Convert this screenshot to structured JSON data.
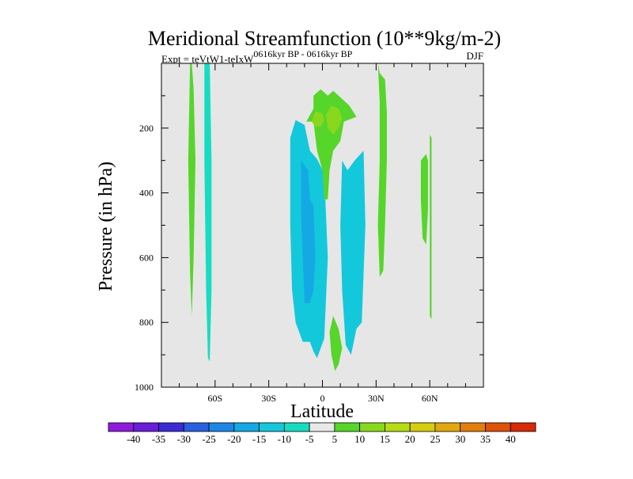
{
  "chart_data": {
    "type": "contour",
    "title": "Meridional Streamfunction (10**9kg/m-2)",
    "subtitle_left_base": "Expt = teVtW1-teIxW",
    "subtitle_left_sup": "0616kyr BP - 0616kyr BP",
    "subtitle_right": "DJF",
    "xlabel": "Latitude",
    "ylabel": "Pressure (in hPa)",
    "xlim": [
      -90,
      90
    ],
    "ylim": [
      1000,
      0
    ],
    "x_ticks": [
      {
        "value": -60,
        "label": "60S"
      },
      {
        "value": -30,
        "label": "30S"
      },
      {
        "value": 0,
        "label": "0"
      },
      {
        "value": 30,
        "label": "30N"
      },
      {
        "value": 60,
        "label": "60N"
      }
    ],
    "y_ticks": [
      {
        "value": 200,
        "label": "200"
      },
      {
        "value": 400,
        "label": "400"
      },
      {
        "value": 600,
        "label": "600"
      },
      {
        "value": 800,
        "label": "800"
      },
      {
        "value": 1000,
        "label": "1000"
      }
    ],
    "colorbar": {
      "labels": [
        "-40",
        "-35",
        "-30",
        "-25",
        "-20",
        "-15",
        "-10",
        "-5",
        "5",
        "10",
        "15",
        "20",
        "25",
        "30",
        "35",
        "40"
      ],
      "colors": [
        "#8f1cdc",
        "#6a1ed8",
        "#3c2bd4",
        "#2a5fe0",
        "#1c86e6",
        "#14a9e4",
        "#14c8dc",
        "#16dcc2",
        "#e8e8e8",
        "#56d52a",
        "#8ad81e",
        "#b6dc14",
        "#d6cc10",
        "#e2a80e",
        "#e27e0c",
        "#de520a",
        "#d62a08"
      ]
    },
    "regions": [
      {
        "level": 5,
        "color": "#56d52a",
        "points": [
          [
            -74,
            0
          ],
          [
            -73,
            0
          ],
          [
            -72,
            80
          ],
          [
            -71,
            300
          ],
          [
            -72,
            600
          ],
          [
            -73,
            780
          ],
          [
            -74,
            650
          ],
          [
            -75,
            300
          ]
        ]
      },
      {
        "level": -5,
        "color": "#16dcc2",
        "points": [
          [
            -66,
            0
          ],
          [
            -63,
            0
          ],
          [
            -62,
            300
          ],
          [
            -62,
            700
          ],
          [
            -63,
            920
          ],
          [
            -64,
            910
          ],
          [
            -65,
            700
          ],
          [
            -66,
            300
          ]
        ]
      },
      {
        "level": -10,
        "color": "#14c8dc",
        "points": [
          [
            -18,
            230
          ],
          [
            -15,
            175
          ],
          [
            -10,
            190
          ],
          [
            -7,
            270
          ],
          [
            -3,
            295
          ],
          [
            1,
            340
          ],
          [
            3,
            600
          ],
          [
            1,
            850
          ],
          [
            -3,
            910
          ],
          [
            -5,
            890
          ],
          [
            -7,
            860
          ],
          [
            -11,
            860
          ],
          [
            -15,
            800
          ],
          [
            -17,
            700
          ],
          [
            -18,
            500
          ]
        ]
      },
      {
        "level": -15,
        "color": "#14a9e4",
        "points": [
          [
            -12,
            300
          ],
          [
            -8,
            330
          ],
          [
            -7,
            420
          ],
          [
            -5,
            440
          ],
          [
            -4,
            600
          ],
          [
            -5,
            700
          ],
          [
            -7,
            740
          ],
          [
            -10,
            740
          ],
          [
            -11,
            600
          ],
          [
            -12,
            450
          ]
        ]
      },
      {
        "level": -10,
        "color": "#14c8dc",
        "points": [
          [
            11,
            300
          ],
          [
            14,
            330
          ],
          [
            18,
            300
          ],
          [
            23,
            270
          ],
          [
            24,
            500
          ],
          [
            22,
            800
          ],
          [
            19,
            820
          ],
          [
            16,
            900
          ],
          [
            13,
            870
          ],
          [
            11,
            700
          ],
          [
            10,
            500
          ]
        ]
      },
      {
        "level": 5,
        "color": "#56d52a",
        "points": [
          [
            -5,
            100
          ],
          [
            -1,
            80
          ],
          [
            3,
            100
          ],
          [
            6,
            85
          ],
          [
            10,
            105
          ],
          [
            15,
            130
          ],
          [
            19,
            165
          ],
          [
            12,
            180
          ],
          [
            10,
            240
          ],
          [
            6,
            270
          ],
          [
            4,
            330
          ],
          [
            3,
            420
          ],
          [
            1,
            420
          ],
          [
            0,
            330
          ],
          [
            -3,
            270
          ],
          [
            -5,
            180
          ],
          [
            -9,
            180
          ],
          [
            -5,
            140
          ]
        ]
      },
      {
        "level": 10,
        "color": "#8ad81e",
        "points": [
          [
            -4,
            148
          ],
          [
            0,
            155
          ],
          [
            1,
            175
          ],
          [
            -1,
            195
          ],
          [
            -4,
            195
          ],
          [
            -6,
            180
          ]
        ]
      },
      {
        "level": 10,
        "color": "#8ad81e",
        "points": [
          [
            5,
            130
          ],
          [
            9,
            140
          ],
          [
            11,
            170
          ],
          [
            9,
            200
          ],
          [
            6,
            220
          ],
          [
            3,
            200
          ],
          [
            2,
            160
          ]
        ]
      },
      {
        "level": 5,
        "color": "#56d52a",
        "points": [
          [
            6,
            780
          ],
          [
            9,
            820
          ],
          [
            11,
            880
          ],
          [
            9,
            930
          ],
          [
            7,
            950
          ],
          [
            5,
            900
          ],
          [
            4,
            830
          ]
        ]
      },
      {
        "level": 5,
        "color": "#56d52a",
        "points": [
          [
            31,
            0
          ],
          [
            31,
            0
          ],
          [
            32,
            30
          ],
          [
            35,
            50
          ],
          [
            36,
            150
          ],
          [
            36,
            300
          ],
          [
            35,
            500
          ],
          [
            34,
            640
          ],
          [
            32,
            660
          ],
          [
            31,
            500
          ],
          [
            32,
            300
          ],
          [
            32,
            120
          ]
        ]
      },
      {
        "level": 5,
        "color": "#56d52a",
        "points": [
          [
            55,
            300
          ],
          [
            58,
            280
          ],
          [
            59,
            300
          ],
          [
            59,
            450
          ],
          [
            58,
            560
          ],
          [
            56,
            540
          ],
          [
            55,
            420
          ]
        ]
      },
      {
        "level": 5,
        "color": "#56d52a",
        "points": [
          [
            60,
            220
          ],
          [
            61,
            230
          ],
          [
            61,
            500
          ],
          [
            61,
            790
          ],
          [
            60,
            780
          ],
          [
            60,
            500
          ]
        ]
      }
    ]
  }
}
